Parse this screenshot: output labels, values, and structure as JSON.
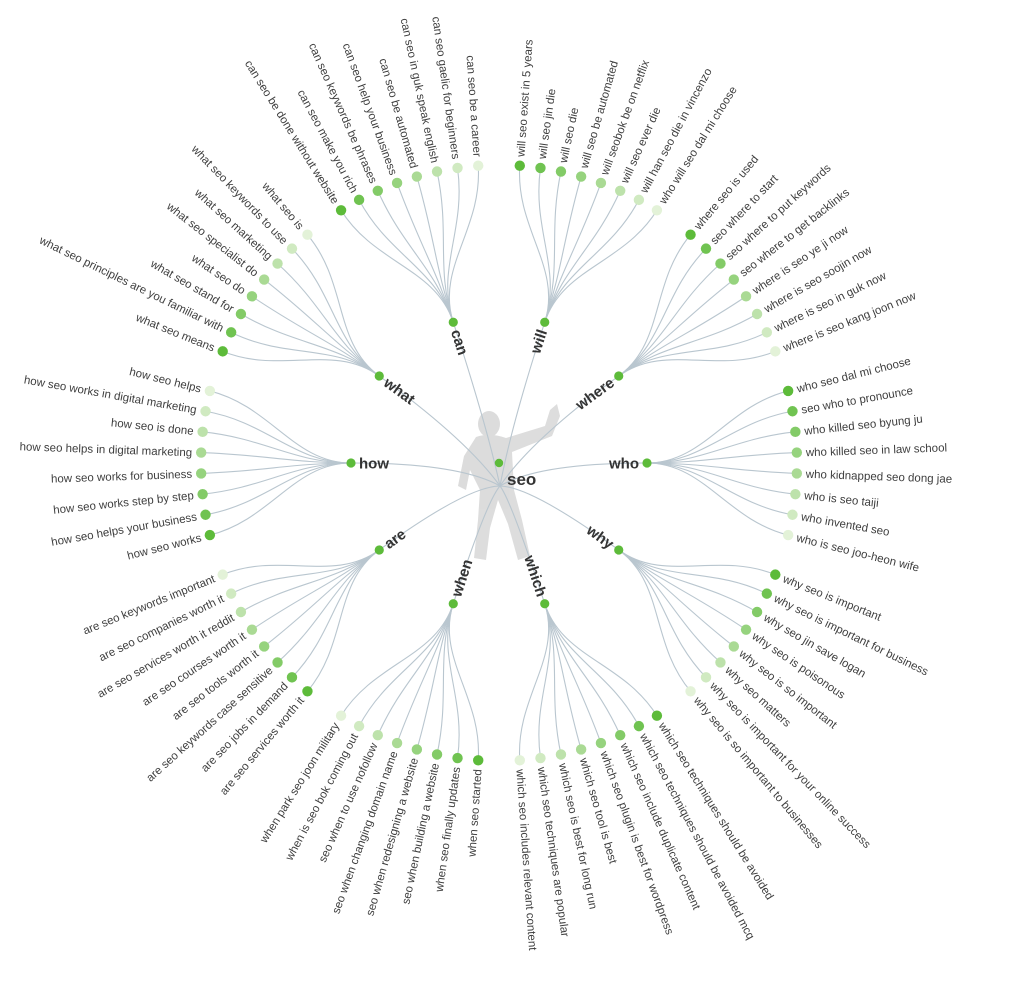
{
  "root": {
    "label": "seo"
  },
  "colors": {
    "dot_strong": "#5dbb3a",
    "dot_weak": "#e3f2d8",
    "link": "#b9c6cf",
    "figure": "#d9d9d9"
  },
  "center_figure_icon": "martial-arts-silhouette",
  "branches": [
    {
      "label": "can",
      "leaves": [
        "can seo be done without website",
        "can seo make you rich",
        "can seo keywords be phrases",
        "can seo help your business",
        "can seo be automated",
        "can seo in guk speak english",
        "can seo gaelic for beginners",
        "can seo be a career"
      ]
    },
    {
      "label": "will",
      "leaves": [
        "will seo exist in 5 years",
        "will seo jin die",
        "will seo die",
        "will seo be automated",
        "will seobok be on netflix",
        "will seo ever die",
        "will han seo die in vincenzo",
        "who will seo dal mi choose"
      ]
    },
    {
      "label": "where",
      "leaves": [
        "where seo is used",
        "seo where to start",
        "seo where to put keywords",
        "seo where to get backlinks",
        "where is seo ye ji now",
        "where is seo soojin now",
        "where is seo in guk now",
        "where is seo kang joon now"
      ]
    },
    {
      "label": "who",
      "leaves": [
        "who seo dal mi choose",
        "seo who to pronounce",
        "who killed seo byung ju",
        "who killed seo in law school",
        "who kidnapped seo dong jae",
        "who is seo taiji",
        "who invented seo",
        "who is seo joo-heon wife"
      ]
    },
    {
      "label": "why",
      "leaves": [
        "why seo is important",
        "why seo is important for business",
        "why seo jin save logan",
        "why seo is poisonous",
        "why seo is so important",
        "why seo matters",
        "why seo is important for your online success",
        "why seo is so important to businesses"
      ]
    },
    {
      "label": "which",
      "leaves": [
        "which seo techniques should be avoided",
        "which seo techniques should be avoided mcq",
        "which seo include duplicate content",
        "which seo plugin is best for wordpress",
        "which seo tool is best",
        "which seo is best for long run",
        "which seo techniques are popular",
        "which seo includes relevant content"
      ]
    },
    {
      "label": "when",
      "leaves": [
        "when seo started",
        "when seo finally updates",
        "seo when building a website",
        "seo when redesigning a website",
        "seo when changing domain name",
        "seo when to use nofollow",
        "when is seo bok coming out",
        "when park seo joon military"
      ]
    },
    {
      "label": "are",
      "leaves": [
        "are seo services worth it",
        "are seo jobs in demand",
        "are seo keywords case sensitive",
        "are seo tools worth it",
        "are seo courses worth it",
        "are seo services worth it reddit",
        "are seo companies worth it",
        "are seo keywords important"
      ]
    },
    {
      "label": "how",
      "leaves": [
        "how seo works",
        "how seo helps your business",
        "how seo works step by step",
        "how seo works for business",
        "how seo helps in digital marketing",
        "how seo is done",
        "how seo works in digital marketing",
        "how seo helps"
      ]
    },
    {
      "label": "what",
      "leaves": [
        "what seo means",
        "what seo principles are you familiar with",
        "what seo stand for",
        "what seo do",
        "what seo specialist do",
        "what seo marketing",
        "what seo keywords to use",
        "what seo is"
      ]
    }
  ]
}
